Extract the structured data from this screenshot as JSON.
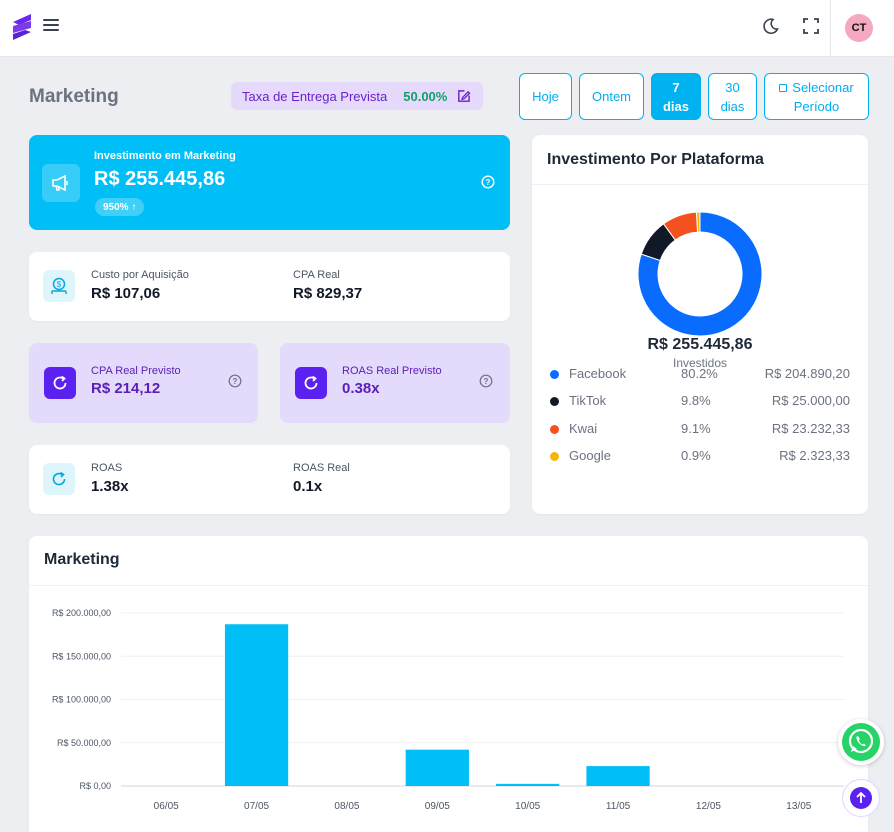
{
  "header": {
    "logo_icon": "brand-s-logo",
    "menu_icon": "hamburger-menu-icon",
    "theme_icon": "moon-icon",
    "fullscreen_icon": "fullscreen-icon",
    "avatar_initials": "CT",
    "avatar_color": "#f4a9c0"
  },
  "page": {
    "title": "Marketing",
    "taxa_label": "Taxa de Entrega Prevista",
    "taxa_value": "50.00%"
  },
  "periods": {
    "hoje": "Hoje",
    "ontem": "Ontem",
    "d7_a": "7",
    "d7_b": "dias",
    "d30_a": "30",
    "d30_b": "dias",
    "sel_a": "Selecionar",
    "sel_b": "Período",
    "active": "7 dias"
  },
  "investment": {
    "label": "Investimento em Marketing",
    "value": "R$ 255.445,86",
    "badge": "950% ↑",
    "color": "#00bff6"
  },
  "cpa_card": {
    "custo_label": "Custo por Aquisição",
    "custo_value": "R$ 107,06",
    "cpa_real_label": "CPA Real",
    "cpa_real_value": "R$ 829,37"
  },
  "cpa_previsto": {
    "label": "CPA Real Previsto",
    "value": "R$ 214,12"
  },
  "roas_previsto": {
    "label": "ROAS Real Previsto",
    "value": "0.38x"
  },
  "roas_card": {
    "roas_label": "ROAS",
    "roas_value": "1.38x",
    "roas_real_label": "ROAS Real",
    "roas_real_value": "0.1x"
  },
  "platforms": {
    "title": "Investimento Por Plataforma",
    "total": "R$ 255.445,86",
    "total_sub": "Investidos",
    "items": [
      {
        "name": "Facebook",
        "pct": "80.2%",
        "amount": "R$ 204.890,20",
        "share": 80.2,
        "color": "#0a6cff"
      },
      {
        "name": "TikTok",
        "pct": "9.8%",
        "amount": "R$ 25.000,00",
        "share": 9.8,
        "color": "#111827"
      },
      {
        "name": "Kwai",
        "pct": "9.1%",
        "amount": "R$ 23.232,33",
        "share": 9.1,
        "color": "#f4511e"
      },
      {
        "name": "Google",
        "pct": "0.9%",
        "amount": "R$ 2.323,33",
        "share": 0.9,
        "color": "#f5b50a"
      }
    ]
  },
  "marketing_chart": {
    "title": "Marketing",
    "bar_color": "#00bff6"
  },
  "chart_data": {
    "type": "bar",
    "categories": [
      "06/05",
      "07/05",
      "08/05",
      "09/05",
      "10/05",
      "11/05",
      "12/05",
      "13/05"
    ],
    "values": [
      0,
      187000,
      0,
      42000,
      2500,
      23000,
      0,
      0
    ],
    "ylim": [
      0,
      200000
    ],
    "yticks": [
      "R$ 200.000,00",
      "R$ 150.000,00",
      "R$ 100.000,00",
      "R$ 50.000,00",
      "R$ 0,00"
    ],
    "ytick_values": [
      200000,
      150000,
      100000,
      50000,
      0
    ],
    "grid": true
  },
  "fabs": {
    "whatsapp_icon": "whatsapp-icon",
    "scroll_top_icon": "arrow-up-icon"
  }
}
